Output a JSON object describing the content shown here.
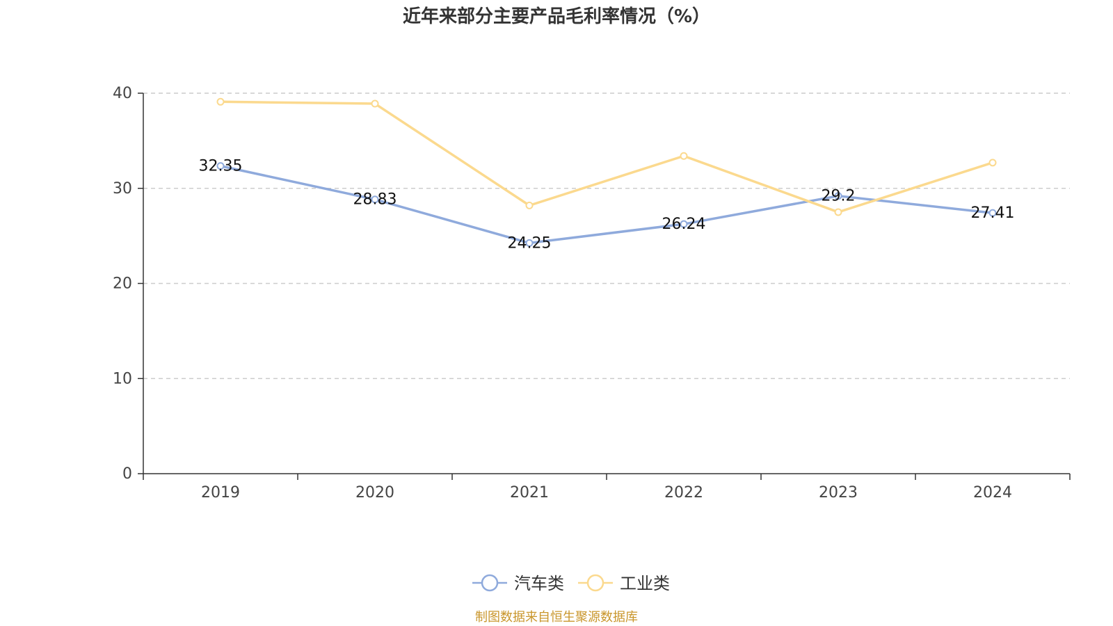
{
  "chart_data": {
    "type": "line",
    "title": "近年来部分主要产品毛利率情况（%）",
    "categories": [
      "2019",
      "2020",
      "2021",
      "2022",
      "2023",
      "2024"
    ],
    "ylim": [
      0,
      40
    ],
    "yticks": [
      "0",
      "10",
      "20",
      "30",
      "40"
    ],
    "grid": "horizontal-dashed",
    "legend_position": "bottom-center",
    "series": [
      {
        "name": "汽车类",
        "color": "#8FAADC",
        "values": [
          32.35,
          28.83,
          24.25,
          26.24,
          29.2,
          27.41
        ],
        "data_labels": [
          "32.35",
          "28.83",
          "24.25",
          "26.24",
          "29.2",
          "27.41"
        ]
      },
      {
        "name": "工业类",
        "color": "#FBD98E",
        "values": [
          39.1,
          38.9,
          28.2,
          33.4,
          27.5,
          32.7
        ],
        "data_labels": []
      }
    ]
  },
  "source_note": "制图数据来自恒生聚源数据库",
  "colors": {
    "axis": "#333333",
    "grid": "#CCCCCC",
    "source": "#C9962B"
  }
}
